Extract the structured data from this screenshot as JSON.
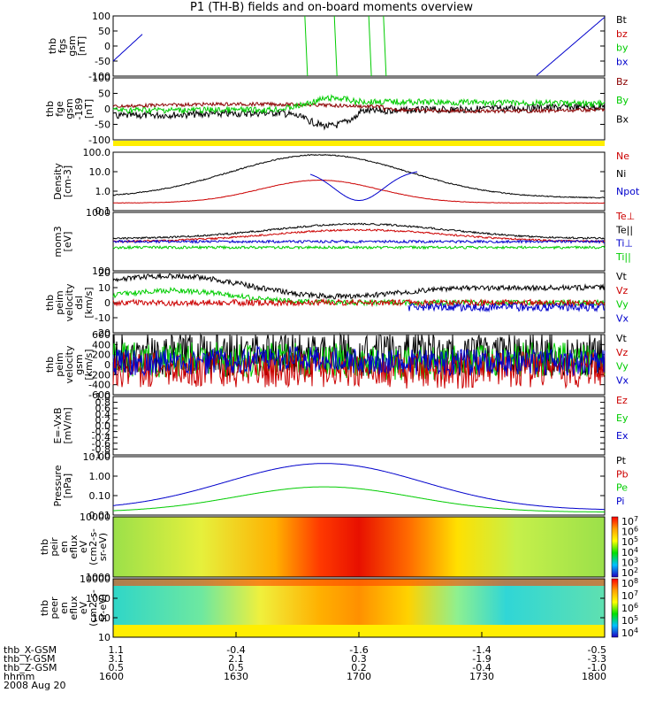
{
  "title": "P1 (TH-B) fields and on-board moments overview",
  "colors": {
    "black": "#000000",
    "red": "#cc0000",
    "green": "#00cc00",
    "blue": "#0000cc",
    "brown": "#8b0000",
    "yellow": "#ffee00"
  },
  "chart_data": [
    {
      "type": "line",
      "ylabel": [
        "thb",
        "fgs",
        "gsm",
        "[nT]"
      ],
      "yticks": [
        "100",
        "50",
        "0",
        "-50",
        "-100"
      ],
      "ylim": [
        -100,
        100
      ],
      "legend": [
        {
          "name": "Bt",
          "color": "black"
        },
        {
          "name": "bz",
          "color": "red"
        },
        {
          "name": "by",
          "color": "green"
        },
        {
          "name": "bx",
          "color": "blue"
        }
      ]
    },
    {
      "type": "line",
      "ylabel": [
        "thb",
        "fge",
        "gsm",
        "-189",
        "[nT]"
      ],
      "yticks": [
        "100",
        "50",
        "0",
        "-50",
        "-100"
      ],
      "ylim": [
        -130,
        130
      ],
      "legend": [
        {
          "name": "Bz",
          "color": "brown"
        },
        {
          "name": "By",
          "color": "green"
        },
        {
          "name": "Bx",
          "color": "black"
        }
      ]
    },
    {
      "type": "line",
      "ylabel": [
        "Density",
        "[cm-3]"
      ],
      "yticks": [
        "100.0",
        "10.0",
        "1.0",
        "0.1"
      ],
      "scale": "log",
      "ylim": [
        0.08,
        150
      ],
      "legend": [
        {
          "name": "Ne",
          "color": "red"
        },
        {
          "name": "Ni",
          "color": "black"
        },
        {
          "name": "Npot",
          "color": "blue"
        }
      ]
    },
    {
      "type": "line",
      "ylabel": [
        "mom3",
        "[eV]"
      ],
      "yticks": [
        "1000",
        "100"
      ],
      "scale": "log",
      "legend": [
        {
          "name": "Te⊥",
          "color": "red"
        },
        {
          "name": "Te||",
          "color": "black"
        },
        {
          "name": "Ti⊥",
          "color": "blue"
        },
        {
          "name": "Ti||",
          "color": "green"
        }
      ]
    },
    {
      "type": "line",
      "ylabel": [
        "thb",
        "peim",
        "velocity",
        "dsl",
        "[km/s]"
      ],
      "yticks": [
        "20",
        "10",
        "0",
        "-10",
        "-20"
      ],
      "ylim": [
        -20,
        20
      ],
      "legend": [
        {
          "name": "Vt",
          "color": "black"
        },
        {
          "name": "Vz",
          "color": "red"
        },
        {
          "name": "Vy",
          "color": "green"
        },
        {
          "name": "Vx",
          "color": "blue"
        }
      ]
    },
    {
      "type": "line",
      "ylabel": [
        "thb",
        "peim",
        "velocity",
        "gsm",
        "[km/s]"
      ],
      "yticks": [
        "600",
        "400",
        "200",
        "0",
        "-200",
        "-400",
        "-600"
      ],
      "ylim": [
        -600,
        600
      ],
      "legend": [
        {
          "name": "Vt",
          "color": "black"
        },
        {
          "name": "Vz",
          "color": "red"
        },
        {
          "name": "Vy",
          "color": "green"
        },
        {
          "name": "Vx",
          "color": "blue"
        }
      ]
    },
    {
      "type": "line",
      "ylabel": [
        "E=-VxB",
        "[mV/m]"
      ],
      "yticks": [
        "1.0",
        "0.8",
        "0.6",
        "0.4",
        "0.2",
        "0.0",
        "-0.2",
        "-0.4",
        "-0.6",
        "-0.8",
        "-1.0"
      ],
      "ylim": [
        -1,
        1
      ],
      "legend": [
        {
          "name": "Ez",
          "color": "red"
        },
        {
          "name": "Ey",
          "color": "green"
        },
        {
          "name": "Ex",
          "color": "blue"
        }
      ]
    },
    {
      "type": "line",
      "ylabel": [
        "Pressure",
        "[nPa]"
      ],
      "yticks": [
        "10.00",
        "1.00",
        "0.10",
        "0.01"
      ],
      "scale": "log",
      "legend": [
        {
          "name": "Pt",
          "color": "black"
        },
        {
          "name": "Pb",
          "color": "red"
        },
        {
          "name": "Pe",
          "color": "green"
        },
        {
          "name": "Pi",
          "color": "blue"
        }
      ]
    },
    {
      "type": "heatmap",
      "ylabel": [
        "thb",
        "peir",
        "en",
        "eflux",
        "eV",
        "(cm2-s-",
        "sr-eV)"
      ],
      "yticks": [
        "10000",
        "1000"
      ],
      "colorbar": [
        "10^7",
        "10^6",
        "10^5",
        "10^4",
        "10^3",
        "10^2"
      ]
    },
    {
      "type": "heatmap",
      "ylabel": [
        "thb",
        "peer",
        "en",
        "eflux",
        "eV",
        "(cm2-s-",
        "sr-eV)"
      ],
      "yticks": [
        "10000",
        "1000",
        "100",
        "10"
      ],
      "colorbar": [
        "10^8",
        "10^7",
        "10^6",
        "10^5",
        "10^4"
      ]
    }
  ],
  "xaxis": {
    "rows": [
      {
        "label": "thb_X-GSM",
        "values": [
          "1.1",
          "-0.4",
          "-1.6",
          "-1.4",
          "-0.5"
        ]
      },
      {
        "label": "thb_Y-GSM",
        "values": [
          "3.1",
          "2.1",
          "0.3",
          "-1.9",
          "-3.3"
        ]
      },
      {
        "label": "thb_Z-GSM",
        "values": [
          "0.5",
          "0.5",
          "0.2",
          "-0.4",
          "-1.0"
        ]
      },
      {
        "label": "hhmm",
        "values": [
          "1600",
          "1630",
          "1700",
          "1730",
          "1800"
        ]
      }
    ],
    "date": "2008 Aug 20"
  }
}
